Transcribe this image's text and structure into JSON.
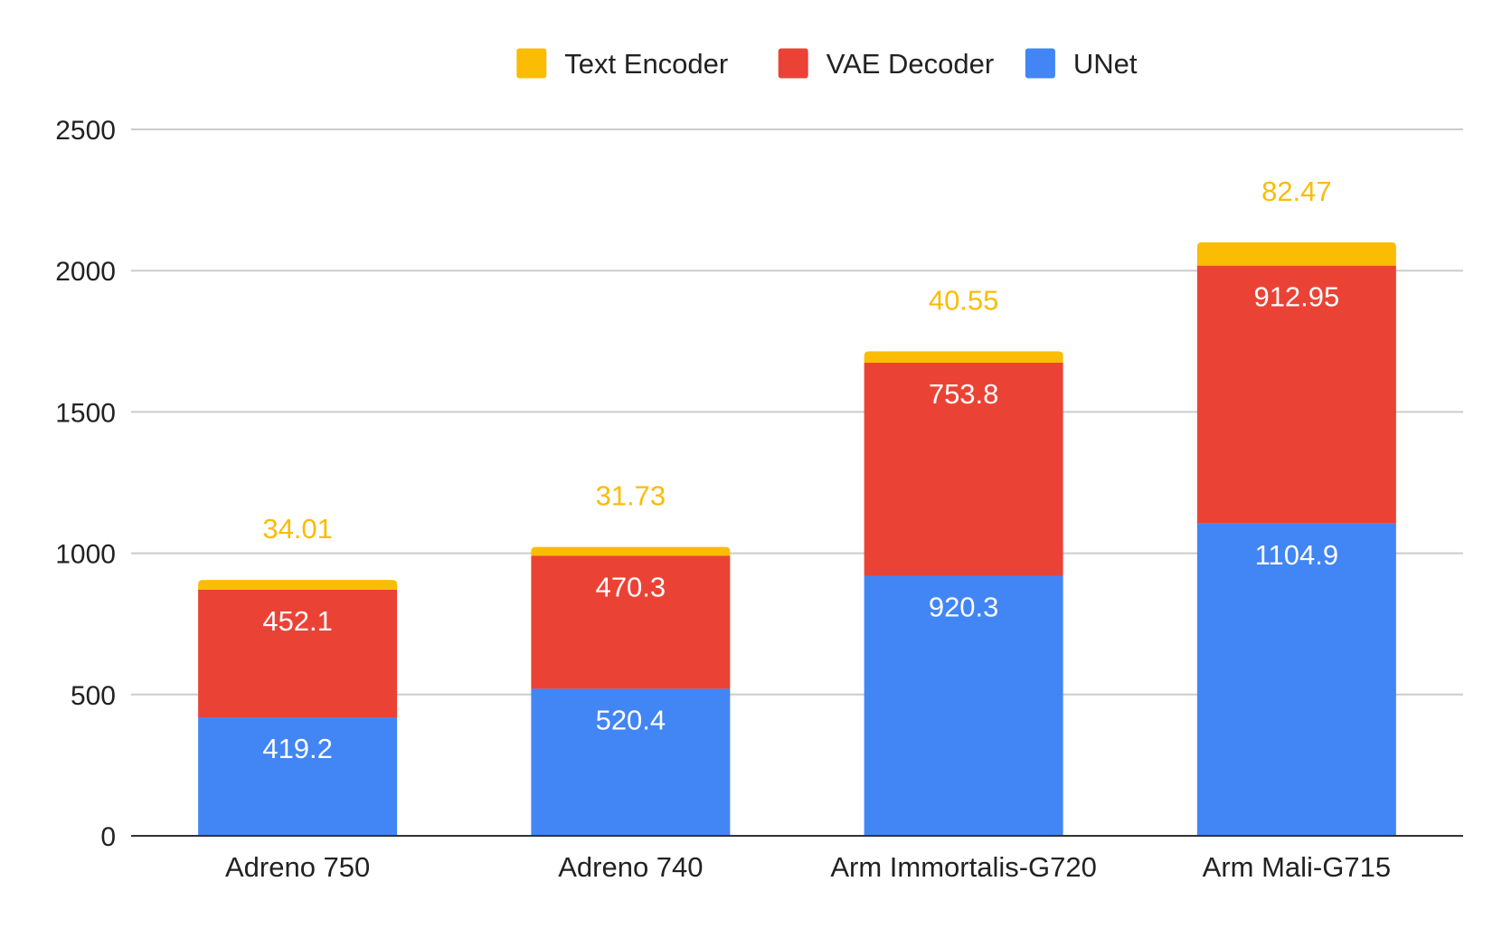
{
  "chart_data": {
    "type": "bar",
    "stacked": true,
    "title": "",
    "xlabel": "",
    "ylabel": "",
    "ylim": [
      0,
      2500
    ],
    "yticks": [
      0,
      500,
      1000,
      1500,
      2000,
      2500
    ],
    "grid": true,
    "legend_position": "top-center",
    "categories": [
      "Adreno 750",
      "Adreno 740",
      "Arm Immortalis-G720",
      "Arm Mali-G715"
    ],
    "series": [
      {
        "name": "UNet",
        "color": "#4285f4",
        "label_color": "#ffffff",
        "values": [
          419.2,
          520.4,
          920.3,
          1104.9
        ],
        "labels": [
          "419.2",
          "520.4",
          "920.3",
          "1104.9"
        ]
      },
      {
        "name": "VAE Decoder",
        "color": "#ea4335",
        "label_color": "#ffffff",
        "values": [
          452.1,
          470.3,
          753.8,
          912.95
        ],
        "labels": [
          "452.1",
          "470.3",
          "753.8",
          "912.95"
        ]
      },
      {
        "name": "Text Encoder",
        "color": "#fbbc04",
        "label_color": "#fbbc04",
        "values": [
          34.01,
          31.73,
          40.55,
          82.47
        ],
        "labels": [
          "34.01",
          "31.73",
          "40.55",
          "82.47"
        ]
      }
    ],
    "legend_order": [
      "Text Encoder",
      "VAE Decoder",
      "UNet"
    ]
  }
}
